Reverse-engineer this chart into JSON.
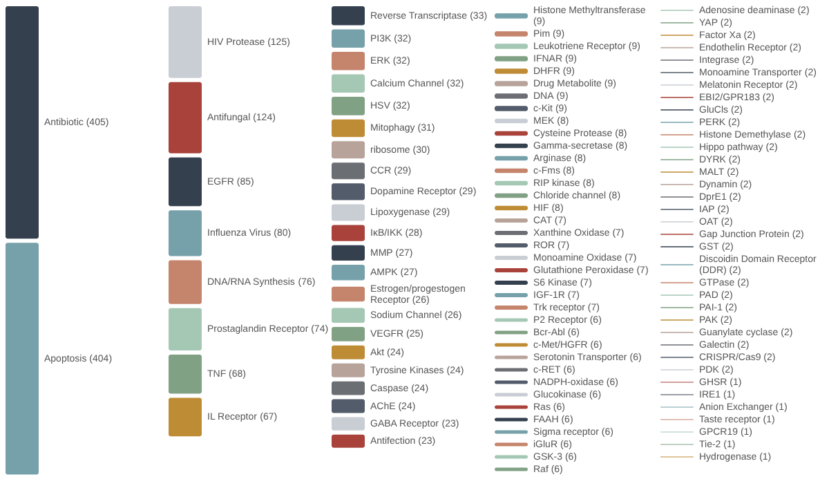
{
  "chart_data": {
    "type": "other",
    "value_labels": [
      "(405)",
      "(404)",
      "(125)",
      "(124)",
      "(85)",
      "(80)",
      "(76)",
      "(74)",
      "(68)",
      "(67)",
      "(33)",
      "(32)",
      "(32)",
      "(32)",
      "(32)",
      "(31)",
      "(30)",
      "(29)",
      "(29)",
      "(29)",
      "(28)",
      "(27)",
      "(27)",
      "(26)",
      "(26)",
      "(25)",
      "(24)",
      "(24)",
      "(24)",
      "(24)",
      "(23)",
      "(23)",
      "(9)",
      "(9)",
      "(9)",
      "(9)",
      "(9)",
      "(9)",
      "(9)",
      "(9)",
      "(8)",
      "(8)",
      "(8)",
      "(8)",
      "(8)",
      "(8)",
      "(8)",
      "(8)",
      "(7)",
      "(7)",
      "(7)",
      "(7)",
      "(7)",
      "(7)",
      "(7)",
      "(7)",
      "(6)",
      "(6)",
      "(6)",
      "(6)",
      "(6)",
      "(6)",
      "(6)",
      "(6)",
      "(6)",
      "(6)",
      "(6)",
      "(6)",
      "(6)",
      "(2)",
      "(2)",
      "(2)",
      "(2)",
      "(2)",
      "(2)",
      "(2)",
      "(2)",
      "(2)",
      "(2)",
      "(2)",
      "(2)",
      "(2)",
      "(2)",
      "(2)",
      "(2)",
      "(2)",
      "(2)",
      "(2)",
      "(2)",
      "(2)",
      "(2)",
      "(2)",
      "(2)",
      "(2)",
      "(2)",
      "(2)",
      "(2)",
      "(2)",
      "(1)",
      "(1)",
      "(1)",
      "(1)",
      "(1)",
      "(1)",
      "(1)"
    ],
    "categories": [
      "Antibiotic",
      "Apoptosis",
      "HIV Protease",
      "Antifungal",
      "EGFR",
      "Influenza Virus",
      "DNA/RNA Synthesis",
      "Prostaglandin Receptor",
      "TNF",
      "IL Receptor",
      "Reverse Transcriptase",
      "PI3K",
      "ERK",
      "Calcium Channel",
      "HSV",
      "Mitophagy",
      "ribosome",
      "CCR",
      "Dopamine Receptor",
      "Lipoxygenase",
      "IκB/IKK",
      "MMP",
      "AMPK",
      "Estrogen/progestogen Receptor",
      "Sodium Channel",
      "VEGFR",
      "Akt",
      "Tyrosine Kinases",
      "Caspase",
      "AChE",
      "GABA Receptor",
      "Antifection",
      "Histone Methyltransferase",
      "Pim",
      "Leukotriene Receptor",
      "IFNAR",
      "DHFR",
      "Drug Metabolite",
      "DNA",
      "c-Kit",
      "MEK",
      "Cysteine Protease",
      "Gamma-secretase",
      "Arginase",
      "c-Fms",
      "RIP kinase",
      "Chloride channel",
      "HIF",
      "CAT",
      "Xanthine Oxidase",
      "ROR",
      "Monoamine Oxidase",
      "Glutathione Peroxidase",
      "S6 Kinase",
      "IGF-1R",
      "Trk receptor",
      "P2 Receptor",
      "Bcr-Abl",
      "c-Met/HGFR",
      "Serotonin Transporter",
      "c-RET",
      "NADPH-oxidase",
      "Glucokinase",
      "Ras",
      "FAAH",
      "Sigma receptor",
      "iGluR",
      "GSK-3",
      "Raf",
      "Adenosine deaminase",
      "YAP",
      "Factor Xa",
      "Endothelin Receptor",
      "Integrase",
      "Monoamine Transporter",
      "Melatonin Receptor",
      "EBI2/GPR183",
      "GluCls",
      "PERK",
      "Histone Demethylase",
      "Hippo pathway",
      "DYRK",
      "MALT",
      "Dynamin",
      "DprE1",
      "IAP",
      "OAT",
      "Gap Junction Protein",
      "GST",
      "Discoidin Domain Receptor (DDR)",
      "GTPase",
      "PAD",
      "PAI-1",
      "PAK",
      "Guanylate cyclase",
      "Galectin",
      "CRISPR/Cas9",
      "PDK",
      "GHSR",
      "IRE1",
      "Anion Exchanger",
      "Taste receptor",
      "GPCR19",
      "Tie-2",
      "Hydrogenase"
    ],
    "values": [
      405,
      404,
      125,
      124,
      85,
      80,
      76,
      74,
      68,
      67,
      33,
      32,
      32,
      32,
      32,
      31,
      30,
      29,
      29,
      29,
      28,
      27,
      27,
      26,
      26,
      25,
      24,
      24,
      24,
      24,
      23,
      23,
      9,
      9,
      9,
      9,
      9,
      9,
      9,
      9,
      8,
      8,
      8,
      8,
      8,
      8,
      8,
      8,
      7,
      7,
      7,
      7,
      7,
      7,
      7,
      7,
      6,
      6,
      6,
      6,
      6,
      6,
      6,
      6,
      6,
      6,
      6,
      6,
      6,
      2,
      2,
      2,
      2,
      2,
      2,
      2,
      2,
      2,
      2,
      2,
      2,
      2,
      2,
      2,
      2,
      2,
      2,
      2,
      2,
      2,
      2,
      2,
      2,
      2,
      2,
      2,
      2,
      2,
      1,
      1,
      1,
      1,
      1,
      1,
      1
    ],
    "colors": [
      "#35404f",
      "#77a1aa",
      "#c9ced4",
      "#a8423a",
      "#35404f",
      "#77a1aa",
      "#c5846c",
      "#a4c8b4",
      "#81a185",
      "#bf8c36",
      "#35404f",
      "#77a1aa",
      "#c5846c",
      "#a4c8b4",
      "#81a185",
      "#bf8c36",
      "#b8a39b",
      "#6b6e73",
      "#525c6a",
      "#c9ced4",
      "#a8423a",
      "#35404f",
      "#77a1aa",
      "#c5846c",
      "#a4c8b4",
      "#81a185",
      "#bf8c36",
      "#b8a39b",
      "#6b6e73",
      "#525c6a",
      "#c9ced4",
      "#a8423a",
      "#77a1aa",
      "#c5846c",
      "#a4c8b4",
      "#81a185",
      "#bf8c36",
      "#b8a39b",
      "#6b6e73",
      "#525c6a",
      "#c9ced4",
      "#a8423a",
      "#35404f",
      "#77a1aa",
      "#c5846c",
      "#a4c8b4",
      "#81a185",
      "#bf8c36",
      "#b8a39b",
      "#6b6e73",
      "#525c6a",
      "#c9ced4",
      "#a8423a",
      "#35404f",
      "#77a1aa",
      "#c5846c",
      "#a4c8b4",
      "#81a185",
      "#bf8c36",
      "#b8a39b",
      "#6b6e73",
      "#525c6a",
      "#c9ced4",
      "#a8423a",
      "#35404f",
      "#77a1aa",
      "#c5846c",
      "#a4c8b4",
      "#81a185",
      "#a4c8b4",
      "#81a185",
      "#bf8c36",
      "#b8a39b",
      "#6b6e73",
      "#525c6a",
      "#c9ced4",
      "#a8423a",
      "#35404f",
      "#77a1aa",
      "#c5846c",
      "#a4c8b4",
      "#81a185",
      "#bf8c36",
      "#b8a39b",
      "#6b6e73",
      "#525c6a",
      "#c9ced4",
      "#a8423a",
      "#35404f",
      "#77a1aa",
      "#c5846c",
      "#a4c8b4",
      "#81a185",
      "#bf8c36",
      "#b8a39b",
      "#6b6e73",
      "#525c6a",
      "#c9ced4",
      "#a8423a",
      "#35404f",
      "#77a1aa",
      "#c5846c",
      "#a4c8b4",
      "#81a185",
      "#bf8c36"
    ]
  }
}
